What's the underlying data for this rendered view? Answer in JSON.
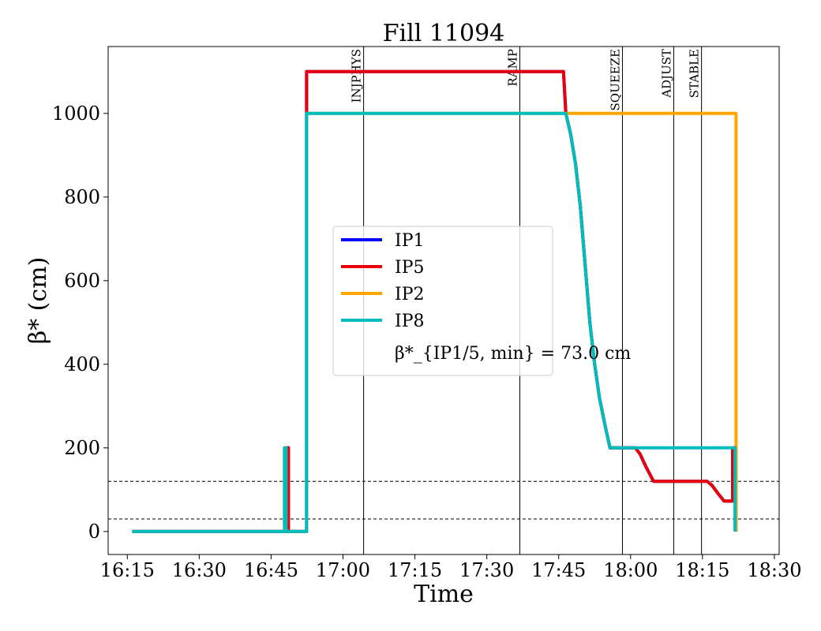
{
  "chart_data": {
    "type": "line",
    "title": "Fill 11094",
    "xlabel": "Time",
    "ylabel": "β* (cm)",
    "x_ticks": [
      "16:15",
      "16:30",
      "16:45",
      "17:00",
      "17:15",
      "17:30",
      "17:45",
      "18:00",
      "18:15",
      "18:30"
    ],
    "x_tick_values": [
      975,
      990,
      1005,
      1020,
      1035,
      1050,
      1065,
      1080,
      1095,
      1110
    ],
    "y_ticks": [
      "0",
      "200",
      "400",
      "600",
      "800",
      "1000"
    ],
    "y_tick_values": [
      0,
      200,
      400,
      600,
      800,
      1000
    ],
    "xlim": [
      971,
      1111
    ],
    "ylim": [
      -55,
      1160
    ],
    "phases": [
      {
        "label": "INJPHYS",
        "x": 1024.3
      },
      {
        "label": "RAMP",
        "x": 1056.9
      },
      {
        "label": "SQUEEZE",
        "x": 1078.3
      },
      {
        "label": "ADJUST",
        "x": 1089.0
      },
      {
        "label": "STABLE",
        "x": 1094.8
      }
    ],
    "hlines": [
      120,
      30
    ],
    "legend": {
      "placement": "center",
      "entries": [
        "IP1",
        "IP5",
        "IP2",
        "IP8"
      ],
      "note": "β*_{IP1/5, min} = 73.0 cm"
    },
    "series": [
      {
        "name": "IP1",
        "color": "#0000ff",
        "points": [
          [
            976,
            0
          ],
          [
            1008.3,
            0
          ],
          [
            1008.3,
            200
          ],
          [
            1008.6,
            200
          ],
          [
            1008.6,
            0
          ],
          [
            1012.4,
            0
          ],
          [
            1012.4,
            1100
          ],
          [
            1035,
            1100
          ],
          [
            1055,
            1100
          ],
          [
            1066,
            1100
          ],
          [
            1066.5,
            1000
          ],
          [
            1067.5,
            950
          ],
          [
            1068.5,
            880
          ],
          [
            1069.5,
            780
          ],
          [
            1070.5,
            640
          ],
          [
            1071.5,
            500
          ],
          [
            1072.5,
            400
          ],
          [
            1073.5,
            320
          ],
          [
            1074.6,
            258
          ],
          [
            1075.7,
            200
          ],
          [
            1081,
            200
          ],
          [
            1082,
            185
          ],
          [
            1083.2,
            155
          ],
          [
            1084.8,
            120
          ],
          [
            1089,
            120
          ],
          [
            1093,
            120
          ],
          [
            1096,
            120
          ],
          [
            1097,
            110
          ],
          [
            1098.3,
            90
          ],
          [
            1099.5,
            73
          ],
          [
            1101.3,
            73
          ],
          [
            1101.3,
            200
          ],
          [
            1102,
            200
          ],
          [
            1102,
            0
          ]
        ]
      },
      {
        "name": "IP5",
        "color": "#e8000b",
        "points": [
          [
            976,
            0
          ],
          [
            1008.3,
            0
          ],
          [
            1008.3,
            200
          ],
          [
            1008.6,
            200
          ],
          [
            1008.6,
            0
          ],
          [
            1012.4,
            0
          ],
          [
            1012.4,
            1100
          ],
          [
            1035,
            1100
          ],
          [
            1055,
            1100
          ],
          [
            1066,
            1100
          ],
          [
            1066.5,
            1000
          ],
          [
            1067.5,
            950
          ],
          [
            1068.5,
            880
          ],
          [
            1069.5,
            780
          ],
          [
            1070.5,
            640
          ],
          [
            1071.5,
            500
          ],
          [
            1072.5,
            400
          ],
          [
            1073.5,
            320
          ],
          [
            1074.6,
            258
          ],
          [
            1075.7,
            200
          ],
          [
            1081,
            200
          ],
          [
            1082,
            185
          ],
          [
            1083.2,
            155
          ],
          [
            1084.8,
            120
          ],
          [
            1089,
            120
          ],
          [
            1093,
            120
          ],
          [
            1096,
            120
          ],
          [
            1097,
            110
          ],
          [
            1098.3,
            90
          ],
          [
            1099.5,
            73
          ],
          [
            1101.3,
            73
          ],
          [
            1101.3,
            200
          ],
          [
            1102,
            200
          ],
          [
            1102,
            0
          ]
        ]
      },
      {
        "name": "IP2",
        "color": "#ffa500",
        "points": [
          [
            976,
            0
          ],
          [
            1007.8,
            0
          ],
          [
            1007.8,
            200
          ],
          [
            1008.1,
            200
          ],
          [
            1008.1,
            0
          ],
          [
            1012.4,
            0
          ],
          [
            1012.4,
            1000
          ],
          [
            1102,
            1000
          ],
          [
            1102,
            200
          ],
          [
            1102,
            0
          ]
        ]
      },
      {
        "name": "IP8",
        "color": "#00bdbd",
        "points": [
          [
            976,
            0
          ],
          [
            1007.8,
            0
          ],
          [
            1007.8,
            200
          ],
          [
            1008.1,
            200
          ],
          [
            1008.1,
            0
          ],
          [
            1012.4,
            0
          ],
          [
            1012.4,
            1000
          ],
          [
            1035,
            1000
          ],
          [
            1066,
            1000
          ],
          [
            1066.5,
            1000
          ],
          [
            1067.5,
            950
          ],
          [
            1068.5,
            880
          ],
          [
            1069.5,
            780
          ],
          [
            1070.5,
            640
          ],
          [
            1071.5,
            500
          ],
          [
            1072.5,
            400
          ],
          [
            1073.5,
            320
          ],
          [
            1074.6,
            258
          ],
          [
            1075.7,
            200
          ],
          [
            1090,
            200
          ],
          [
            1101.8,
            200
          ],
          [
            1101.8,
            0
          ]
        ]
      }
    ]
  }
}
